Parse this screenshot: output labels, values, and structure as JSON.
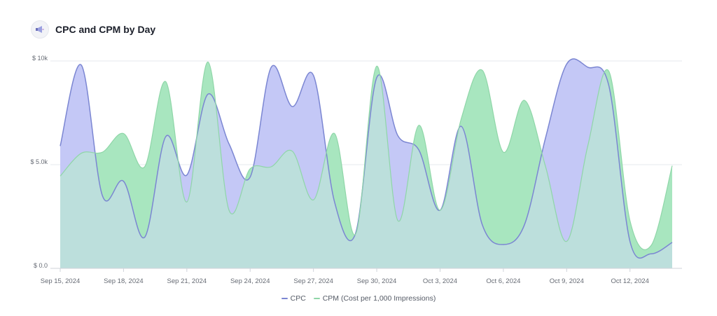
{
  "header": {
    "title": "CPC and CPM by Day",
    "icon": "megaphone-icon"
  },
  "colors": {
    "cpc_fill": "#c4c8f6",
    "cpc_line": "#7b86d2",
    "cpm_fill": "#a8e6bf",
    "cpm_line": "#8fd6a8",
    "overlap": "#bcdfdc",
    "grid": "#e6e8ec",
    "axis_text": "#666b74"
  },
  "chart_data": {
    "type": "area",
    "title": "CPC and CPM by Day",
    "x_start_label": "Sep 15, 2024",
    "x_tick_labels": [
      "Sep 15, 2024",
      "Sep 18, 2024",
      "Sep 21, 2024",
      "Sep 24, 2024",
      "Sep 27, 2024",
      "Sep 30, 2024",
      "Oct 3, 2024",
      "Oct 6, 2024",
      "Oct 9, 2024",
      "Oct 12, 2024"
    ],
    "x_tick_indices": [
      0,
      3,
      6,
      9,
      12,
      15,
      18,
      21,
      24,
      27
    ],
    "y_tick_values": [
      0,
      5000,
      10000
    ],
    "y_tick_labels": [
      "$ 0.0",
      "$ 5.0k",
      "$ 10k"
    ],
    "ylim": [
      0,
      10000
    ],
    "grid": true,
    "legend_position": "bottom",
    "series": [
      {
        "name": "CPC",
        "values": [
          5900,
          9800,
          3500,
          4200,
          1500,
          6350,
          4500,
          8400,
          6000,
          4400,
          9700,
          7800,
          9300,
          3200,
          1700,
          9200,
          6400,
          5700,
          2800,
          6850,
          2100,
          1150,
          2100,
          6300,
          9850,
          9700,
          8800,
          1300,
          700,
          1250
        ]
      },
      {
        "name": "CPM (Cost per 1,000 Impressions)",
        "values": [
          4450,
          5550,
          5600,
          6500,
          4900,
          9000,
          3200,
          9950,
          2800,
          4800,
          4900,
          5650,
          3300,
          6500,
          1650,
          9750,
          2300,
          6900,
          2800,
          7200,
          9550,
          5600,
          8100,
          4900,
          1300,
          5900,
          9500,
          2300,
          1100,
          4950
        ]
      }
    ]
  },
  "legend": {
    "items": [
      "CPC",
      "CPM (Cost per 1,000 Impressions)"
    ]
  }
}
